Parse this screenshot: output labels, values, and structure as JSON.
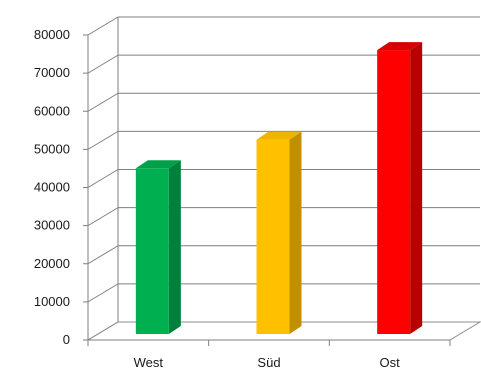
{
  "chart_data": {
    "type": "bar",
    "style": "3d-column",
    "categories": [
      "West",
      "Süd",
      "Ost"
    ],
    "values": [
      44000,
      51500,
      75000
    ],
    "ylim": [
      0,
      80000
    ],
    "y_ticks": [
      "0",
      "10000",
      "20000",
      "30000",
      "40000",
      "50000",
      "60000",
      "70000",
      "80000"
    ],
    "grid": true,
    "legend": "none",
    "colors": [
      {
        "front": "#00b050",
        "side": "#00803a",
        "top": "#00a04a"
      },
      {
        "front": "#ffc000",
        "side": "#c09000",
        "top": "#f0b400"
      },
      {
        "front": "#ff0000",
        "side": "#b80000",
        "top": "#d80000"
      }
    ]
  }
}
